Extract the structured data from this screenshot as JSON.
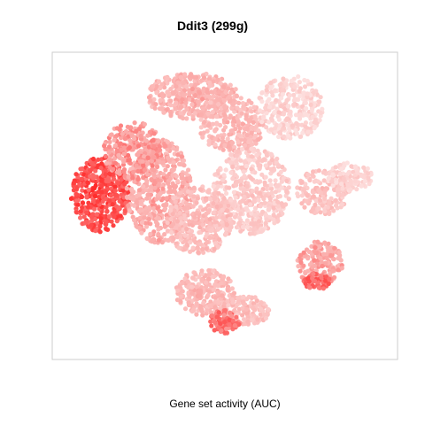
{
  "chart_data": {
    "type": "scatter",
    "title": "Ddit3 (299g)",
    "xlabel": "Gene set activity (AUC)",
    "ylabel": "",
    "grid": false,
    "legend": "none",
    "colors": {
      "low": "#fde0df",
      "mid": "#fbaaa8",
      "high": "#ff2a2a",
      "frame": "#cccccc"
    },
    "clusters": [
      {
        "cx": 0.12,
        "cy": 0.46,
        "rx": 0.09,
        "ry": 0.13,
        "level": 0.85,
        "n": 420
      },
      {
        "cx": 0.3,
        "cy": 0.45,
        "rx": 0.1,
        "ry": 0.18,
        "level": 0.45,
        "n": 520
      },
      {
        "cx": 0.22,
        "cy": 0.31,
        "rx": 0.09,
        "ry": 0.1,
        "level": 0.55,
        "n": 260
      },
      {
        "cx": 0.4,
        "cy": 0.12,
        "rx": 0.14,
        "ry": 0.08,
        "level": 0.4,
        "n": 360
      },
      {
        "cx": 0.52,
        "cy": 0.22,
        "rx": 0.1,
        "ry": 0.1,
        "level": 0.35,
        "n": 260
      },
      {
        "cx": 0.7,
        "cy": 0.16,
        "rx": 0.1,
        "ry": 0.11,
        "level": 0.1,
        "n": 300
      },
      {
        "cx": 0.58,
        "cy": 0.45,
        "rx": 0.12,
        "ry": 0.15,
        "level": 0.18,
        "n": 480
      },
      {
        "cx": 0.42,
        "cy": 0.55,
        "rx": 0.1,
        "ry": 0.12,
        "level": 0.3,
        "n": 340
      },
      {
        "cx": 0.44,
        "cy": 0.8,
        "rx": 0.09,
        "ry": 0.08,
        "level": 0.35,
        "n": 240
      },
      {
        "cx": 0.56,
        "cy": 0.86,
        "rx": 0.08,
        "ry": 0.05,
        "level": 0.3,
        "n": 160
      },
      {
        "cx": 0.5,
        "cy": 0.9,
        "rx": 0.05,
        "ry": 0.04,
        "level": 0.7,
        "n": 90
      },
      {
        "cx": 0.8,
        "cy": 0.45,
        "rx": 0.08,
        "ry": 0.08,
        "level": 0.25,
        "n": 170
      },
      {
        "cx": 0.88,
        "cy": 0.4,
        "rx": 0.07,
        "ry": 0.05,
        "level": 0.1,
        "n": 110
      },
      {
        "cx": 0.79,
        "cy": 0.7,
        "rx": 0.07,
        "ry": 0.08,
        "level": 0.5,
        "n": 160
      },
      {
        "cx": 0.78,
        "cy": 0.76,
        "rx": 0.04,
        "ry": 0.03,
        "level": 0.75,
        "n": 60
      }
    ]
  }
}
